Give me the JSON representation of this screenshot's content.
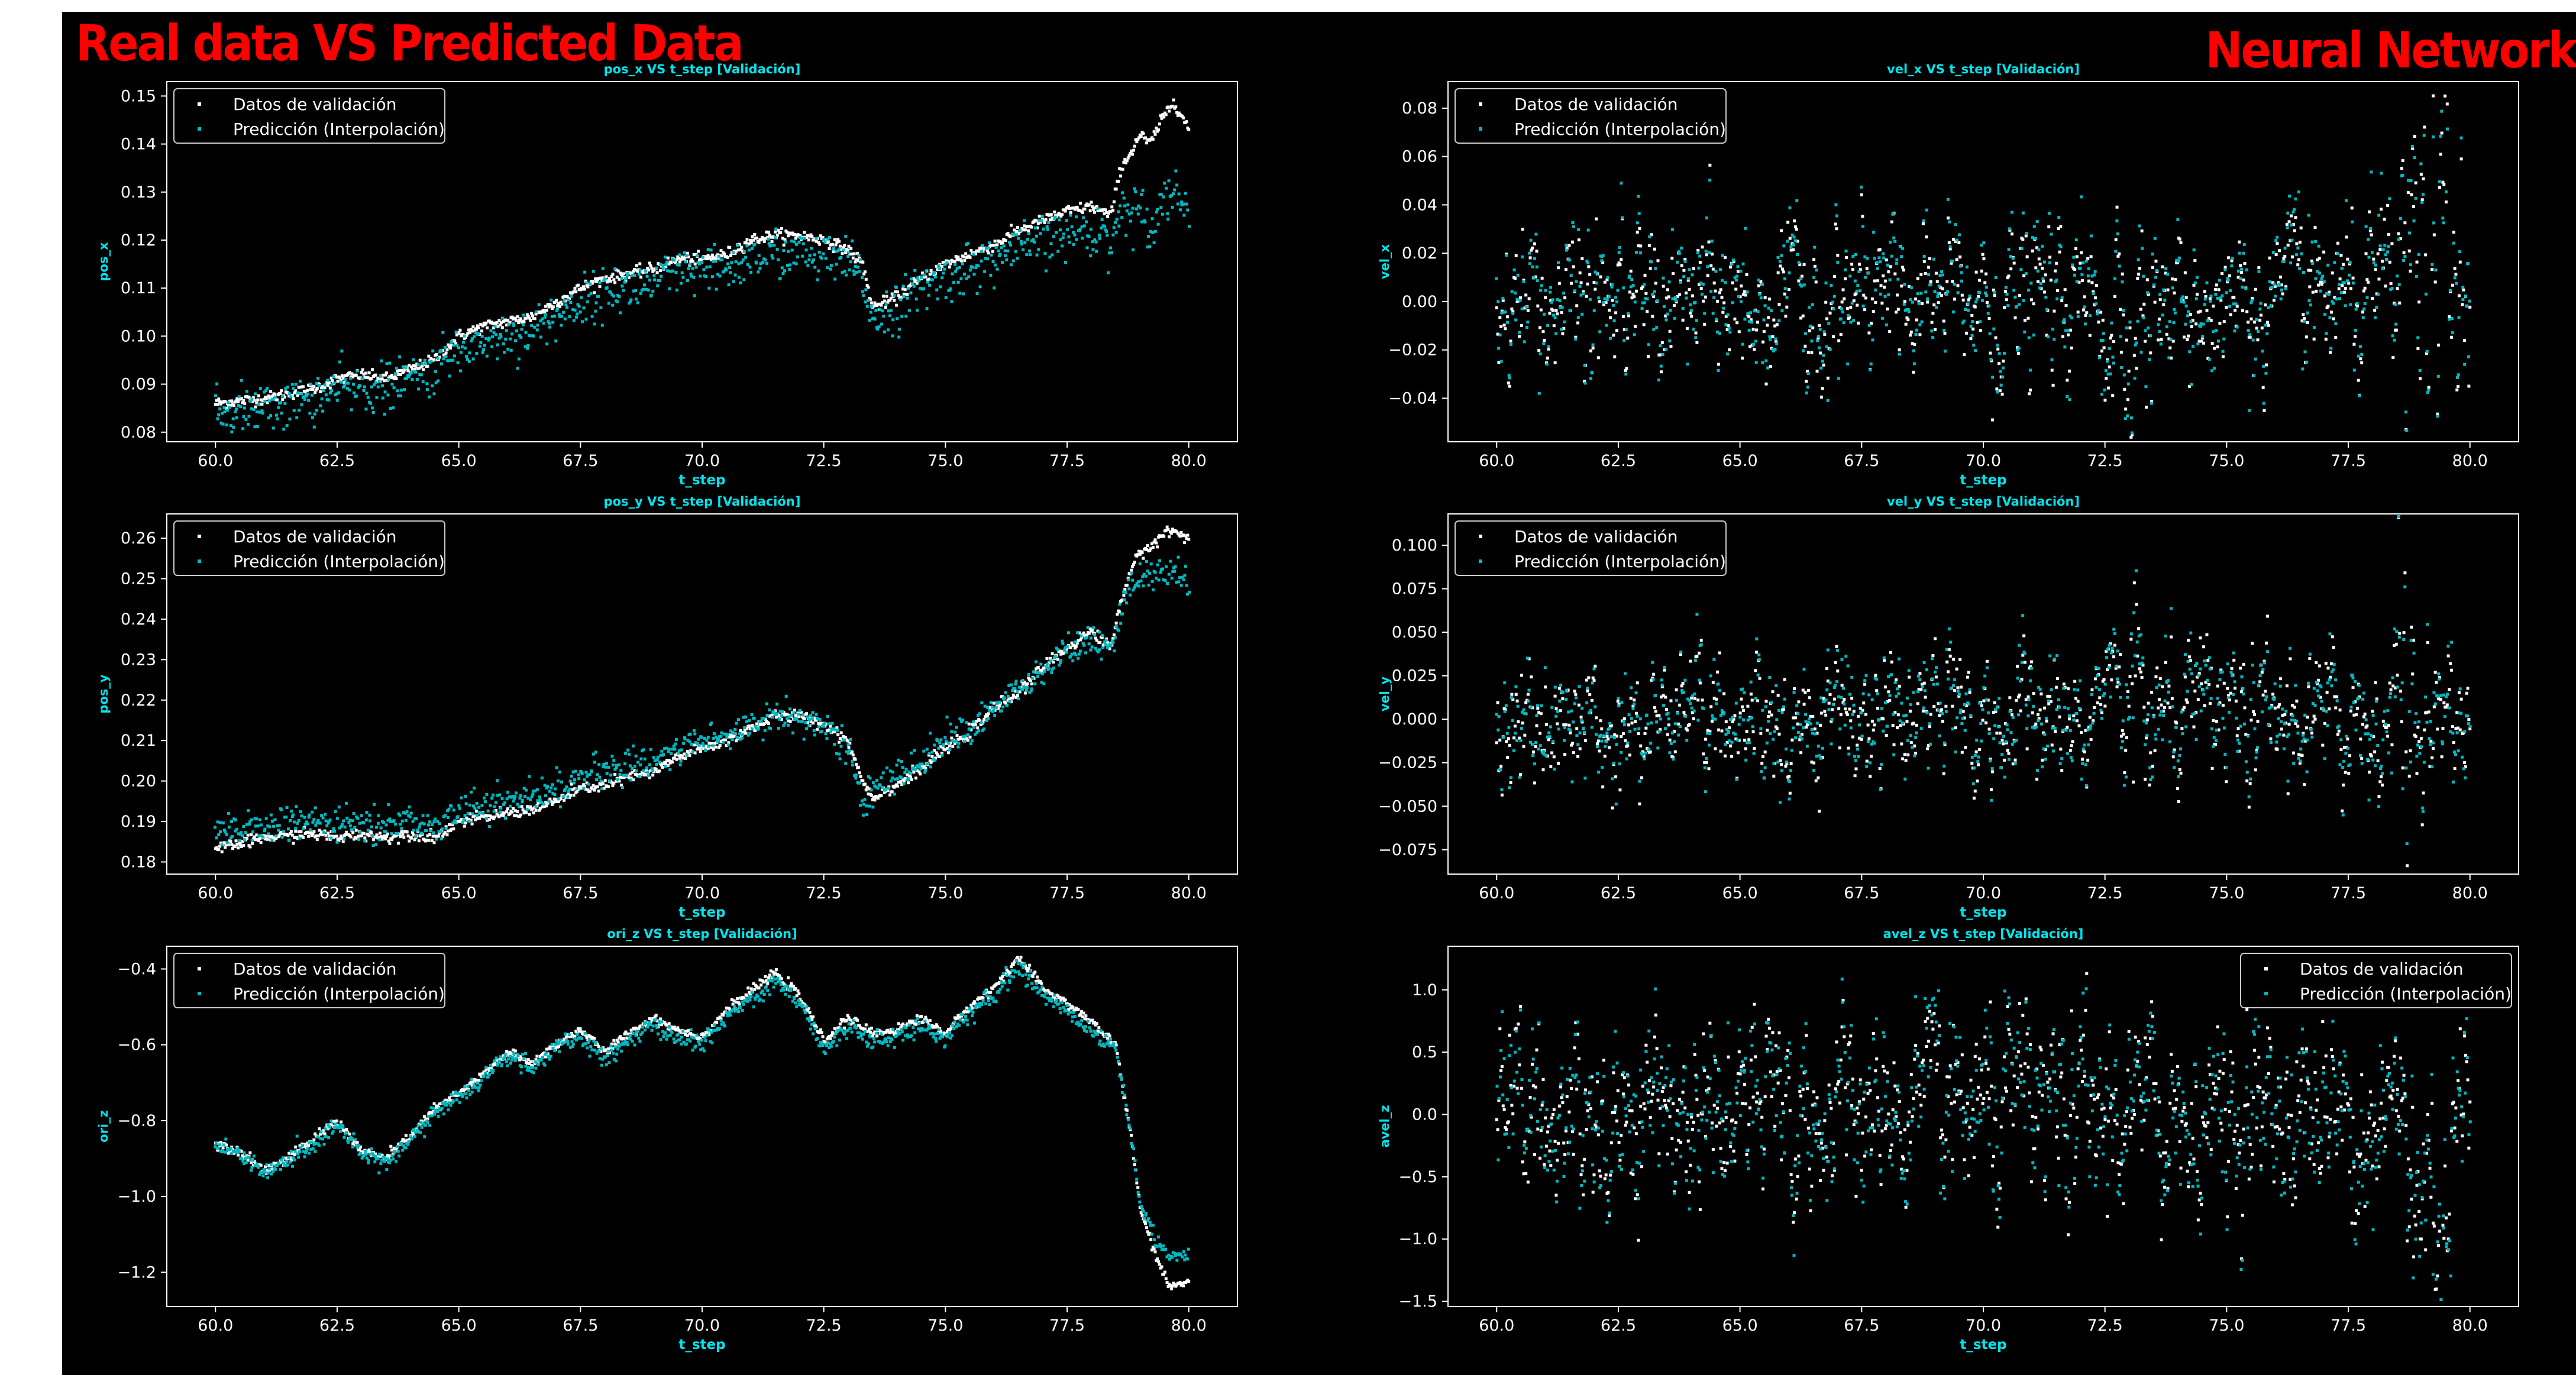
{
  "header": {
    "left_title": "Real data VS Predicted Data",
    "right_title": "Neural Network"
  },
  "colors": {
    "background": "#000000",
    "axis": "#ffffff",
    "accent_text": "#00e5ee",
    "real": "#ffffff",
    "pred": "#00b8c0",
    "header": "#ff0000"
  },
  "chart_data": [
    {
      "type": "scatter",
      "title": "pos_x VS t_step [Validación]",
      "xlabel": "t_step",
      "ylabel": "pos_x",
      "xlim": [
        59,
        81
      ],
      "ylim": [
        0.078,
        0.153
      ],
      "xticks": [
        60,
        62.5,
        65,
        67.5,
        70,
        72.5,
        75,
        77.5,
        80
      ],
      "xtick_labels": [
        "60.0",
        "62.5",
        "65.0",
        "67.5",
        "70.0",
        "72.5",
        "75.0",
        "77.5",
        "80.0"
      ],
      "yticks": [
        0.08,
        0.09,
        0.1,
        0.11,
        0.12,
        0.13,
        0.14,
        0.15
      ],
      "ytick_labels": [
        "0.08",
        "0.09",
        "0.10",
        "0.11",
        "0.12",
        "0.13",
        "0.14",
        "0.15"
      ],
      "legend": "upper-left",
      "legend_entries": [
        "Datos de validación",
        "Predicción (Interpolación)"
      ],
      "noisy": false,
      "series": [
        {
          "name": "Datos de validación",
          "x": [
            60,
            61,
            62,
            62.5,
            63,
            63.5,
            64,
            64.5,
            65,
            65.5,
            66,
            66.5,
            67,
            67.5,
            68,
            68.5,
            69,
            69.5,
            70,
            70.5,
            71,
            71.5,
            72,
            72.5,
            73,
            73.3,
            73.5,
            74,
            74.5,
            75,
            75.5,
            76,
            76.5,
            77,
            77.5,
            78,
            78.4,
            78.6,
            78.8,
            79,
            79.2,
            79.5,
            79.7,
            80
          ],
          "y": [
            0.086,
            0.087,
            0.089,
            0.091,
            0.092,
            0.091,
            0.093,
            0.095,
            0.1,
            0.102,
            0.103,
            0.104,
            0.107,
            0.11,
            0.112,
            0.113,
            0.114,
            0.116,
            0.116,
            0.117,
            0.12,
            0.121,
            0.121,
            0.12,
            0.118,
            0.115,
            0.106,
            0.108,
            0.112,
            0.115,
            0.117,
            0.119,
            0.122,
            0.124,
            0.126,
            0.127,
            0.125,
            0.135,
            0.138,
            0.142,
            0.14,
            0.146,
            0.149,
            0.143
          ],
          "jitter": 0.0006
        },
        {
          "name": "Predicción (Interpolación)",
          "x": [
            60,
            61,
            62,
            62.5,
            63,
            63.5,
            64,
            64.5,
            65,
            65.5,
            66,
            66.5,
            67,
            67.5,
            68,
            68.5,
            69,
            69.5,
            70,
            70.5,
            71,
            71.5,
            72,
            72.5,
            73,
            73.3,
            73.5,
            74,
            74.5,
            75,
            75.5,
            76,
            76.5,
            77,
            77.5,
            78,
            78.4,
            78.6,
            78.8,
            79,
            79.2,
            79.5,
            79.7,
            80
          ],
          "y": [
            0.084,
            0.085,
            0.087,
            0.089,
            0.089,
            0.089,
            0.091,
            0.093,
            0.097,
            0.099,
            0.1,
            0.101,
            0.104,
            0.107,
            0.109,
            0.11,
            0.111,
            0.113,
            0.113,
            0.114,
            0.116,
            0.117,
            0.117,
            0.116,
            0.115,
            0.112,
            0.104,
            0.106,
            0.11,
            0.112,
            0.114,
            0.116,
            0.118,
            0.12,
            0.121,
            0.122,
            0.12,
            0.126,
            0.126,
            0.127,
            0.123,
            0.129,
            0.13,
            0.127
          ],
          "jitter": 0.0025
        }
      ]
    },
    {
      "type": "scatter",
      "title": "vel_x VS t_step [Validación]",
      "xlabel": "t_step",
      "ylabel": "vel_x",
      "xlim": [
        59,
        81
      ],
      "ylim": [
        -0.058,
        0.091
      ],
      "xticks": [
        60,
        62.5,
        65,
        67.5,
        70,
        72.5,
        75,
        77.5,
        80
      ],
      "xtick_labels": [
        "60.0",
        "62.5",
        "65.0",
        "67.5",
        "70.0",
        "72.5",
        "75.0",
        "77.5",
        "80.0"
      ],
      "yticks": [
        -0.04,
        -0.02,
        0.0,
        0.02,
        0.04,
        0.06,
        0.08
      ],
      "ytick_labels": [
        "−0.04",
        "−0.02",
        "0.00",
        "0.02",
        "0.04",
        "0.06",
        "0.08"
      ],
      "legend": "upper-left",
      "legend_entries": [
        "Datos de validación",
        "Predicción (Interpolación)"
      ],
      "noisy": true,
      "amplitude": 0.018,
      "bursts": [
        {
          "x0": 78.5,
          "x1": 79.9,
          "amp": 0.05
        },
        {
          "x0": 72.5,
          "x1": 73.5,
          "amp": 0.03
        }
      ],
      "series": [
        {
          "name": "Datos de validación",
          "x": [
            60,
            80
          ],
          "y": [
            0.0,
            0.0
          ]
        },
        {
          "name": "Predicción (Interpolación)",
          "x": [
            60,
            80
          ],
          "y": [
            0.0,
            0.0
          ]
        }
      ]
    },
    {
      "type": "scatter",
      "title": "pos_y VS t_step [Validación]",
      "xlabel": "t_step",
      "ylabel": "pos_y",
      "xlim": [
        59,
        81
      ],
      "ylim": [
        0.177,
        0.266
      ],
      "xticks": [
        60,
        62.5,
        65,
        67.5,
        70,
        72.5,
        75,
        77.5,
        80
      ],
      "xtick_labels": [
        "60.0",
        "62.5",
        "65.0",
        "67.5",
        "70.0",
        "72.5",
        "75.0",
        "77.5",
        "80.0"
      ],
      "yticks": [
        0.18,
        0.19,
        0.2,
        0.21,
        0.22,
        0.23,
        0.24,
        0.25,
        0.26
      ],
      "ytick_labels": [
        "0.18",
        "0.19",
        "0.20",
        "0.21",
        "0.22",
        "0.23",
        "0.24",
        "0.25",
        "0.26"
      ],
      "legend": "upper-left",
      "legend_entries": [
        "Datos de validación",
        "Predicción (Interpolación)"
      ],
      "noisy": false,
      "series": [
        {
          "name": "Datos de validación",
          "x": [
            60,
            61,
            62,
            62.5,
            63,
            63.5,
            64,
            64.5,
            65,
            65.5,
            66,
            66.5,
            67,
            67.5,
            68,
            68.5,
            69,
            69.5,
            70,
            70.5,
            71,
            71.5,
            72,
            72.5,
            73,
            73.3,
            73.5,
            74,
            74.5,
            75,
            75.5,
            76,
            76.5,
            77,
            77.5,
            78,
            78.4,
            78.6,
            78.8,
            79,
            79.3,
            79.6,
            80
          ],
          "y": [
            0.183,
            0.186,
            0.187,
            0.186,
            0.187,
            0.186,
            0.187,
            0.186,
            0.19,
            0.191,
            0.192,
            0.193,
            0.195,
            0.198,
            0.199,
            0.201,
            0.202,
            0.206,
            0.208,
            0.21,
            0.213,
            0.216,
            0.216,
            0.214,
            0.21,
            0.2,
            0.196,
            0.199,
            0.203,
            0.208,
            0.212,
            0.218,
            0.222,
            0.228,
            0.233,
            0.237,
            0.233,
            0.244,
            0.252,
            0.256,
            0.259,
            0.262,
            0.26
          ],
          "jitter": 0.0007
        },
        {
          "name": "Predicción (Interpolación)",
          "x": [
            60,
            61,
            62,
            62.5,
            63,
            63.5,
            64,
            64.5,
            65,
            65.5,
            66,
            66.5,
            67,
            67.5,
            68,
            68.5,
            69,
            69.5,
            70,
            70.5,
            71,
            71.5,
            72,
            72.5,
            73,
            73.3,
            73.5,
            74,
            74.5,
            75,
            75.5,
            76,
            76.5,
            77,
            77.5,
            78,
            78.4,
            78.6,
            78.8,
            79,
            79.3,
            79.6,
            80
          ],
          "y": [
            0.186,
            0.189,
            0.19,
            0.189,
            0.19,
            0.189,
            0.19,
            0.189,
            0.193,
            0.194,
            0.195,
            0.196,
            0.198,
            0.201,
            0.202,
            0.204,
            0.205,
            0.208,
            0.21,
            0.211,
            0.214,
            0.216,
            0.216,
            0.213,
            0.208,
            0.195,
            0.198,
            0.201,
            0.205,
            0.21,
            0.213,
            0.218,
            0.222,
            0.227,
            0.232,
            0.235,
            0.231,
            0.242,
            0.248,
            0.25,
            0.251,
            0.252,
            0.25
          ],
          "jitter": 0.002
        }
      ]
    },
    {
      "type": "scatter",
      "title": "vel_y VS t_step [Validación]",
      "xlabel": "t_step",
      "ylabel": "vel_y",
      "xlim": [
        59,
        81
      ],
      "ylim": [
        -0.089,
        0.118
      ],
      "xticks": [
        60,
        62.5,
        65,
        67.5,
        70,
        72.5,
        75,
        77.5,
        80
      ],
      "xtick_labels": [
        "60.0",
        "62.5",
        "65.0",
        "67.5",
        "70.0",
        "72.5",
        "75.0",
        "77.5",
        "80.0"
      ],
      "yticks": [
        -0.075,
        -0.05,
        -0.025,
        0.0,
        0.025,
        0.05,
        0.075,
        0.1
      ],
      "ytick_labels": [
        "−0.075",
        "−0.050",
        "−0.025",
        "0.000",
        "0.025",
        "0.050",
        "0.075",
        "0.100"
      ],
      "legend": "upper-left",
      "legend_entries": [
        "Datos de validación",
        "Predicción (Interpolación)"
      ],
      "noisy": true,
      "amplitude": 0.022,
      "bursts": [
        {
          "x0": 78.4,
          "x1": 78.9,
          "amp": 0.07
        },
        {
          "x0": 73.0,
          "x1": 73.5,
          "amp": 0.05
        }
      ],
      "series": [
        {
          "name": "Datos de validación",
          "x": [
            60,
            80
          ],
          "y": [
            0.0,
            0.0
          ]
        },
        {
          "name": "Predicción (Interpolación)",
          "x": [
            60,
            80
          ],
          "y": [
            0.0,
            0.0
          ]
        }
      ]
    },
    {
      "type": "scatter",
      "title": "ori_z VS t_step [Validación]",
      "xlabel": "t_step",
      "ylabel": "ori_z",
      "xlim": [
        59,
        81
      ],
      "ylim": [
        -1.29,
        -0.34
      ],
      "xticks": [
        60,
        62.5,
        65,
        67.5,
        70,
        72.5,
        75,
        77.5,
        80
      ],
      "xtick_labels": [
        "60.0",
        "62.5",
        "65.0",
        "67.5",
        "70.0",
        "72.5",
        "75.0",
        "77.5",
        "80.0"
      ],
      "yticks": [
        -1.2,
        -1.0,
        -0.8,
        -0.6,
        -0.4
      ],
      "ytick_labels": [
        "−1.2",
        "−1.0",
        "−0.8",
        "−0.6",
        "−0.4"
      ],
      "legend": "upper-left",
      "legend_entries": [
        "Datos de validación",
        "Predicción (Interpolación)"
      ],
      "noisy": false,
      "series": [
        {
          "name": "Datos de validación",
          "x": [
            60,
            60.5,
            61,
            61.5,
            62,
            62.5,
            63,
            63.5,
            64,
            64.5,
            65,
            65.5,
            66,
            66.5,
            67,
            67.5,
            68,
            68.5,
            69,
            69.5,
            70,
            70.5,
            71,
            71.5,
            72,
            72.5,
            73,
            73.5,
            74,
            74.5,
            75,
            75.5,
            76,
            76.5,
            77,
            77.5,
            78,
            78.5,
            78.8,
            79,
            79.3,
            79.6,
            80
          ],
          "y": [
            -0.86,
            -0.88,
            -0.93,
            -0.9,
            -0.85,
            -0.8,
            -0.88,
            -0.9,
            -0.84,
            -0.77,
            -0.73,
            -0.68,
            -0.62,
            -0.65,
            -0.6,
            -0.56,
            -0.62,
            -0.57,
            -0.53,
            -0.56,
            -0.58,
            -0.51,
            -0.46,
            -0.41,
            -0.47,
            -0.59,
            -0.53,
            -0.57,
            -0.56,
            -0.53,
            -0.57,
            -0.5,
            -0.45,
            -0.37,
            -0.45,
            -0.49,
            -0.54,
            -0.6,
            -0.83,
            -1.03,
            -1.15,
            -1.24,
            -1.22
          ],
          "jitter": 0.006
        },
        {
          "name": "Predicción (Interpolación)",
          "x": [
            60,
            60.5,
            61,
            61.5,
            62,
            62.5,
            63,
            63.5,
            64,
            64.5,
            65,
            65.5,
            66,
            66.5,
            67,
            67.5,
            68,
            68.5,
            69,
            69.5,
            70,
            70.5,
            71,
            71.5,
            72,
            72.5,
            73,
            73.5,
            74,
            74.5,
            75,
            75.5,
            76,
            76.5,
            77,
            77.5,
            78,
            78.5,
            78.8,
            79,
            79.3,
            79.6,
            80
          ],
          "y": [
            -0.87,
            -0.89,
            -0.94,
            -0.91,
            -0.86,
            -0.81,
            -0.89,
            -0.91,
            -0.85,
            -0.78,
            -0.74,
            -0.69,
            -0.63,
            -0.66,
            -0.61,
            -0.58,
            -0.64,
            -0.59,
            -0.55,
            -0.58,
            -0.6,
            -0.53,
            -0.48,
            -0.43,
            -0.49,
            -0.61,
            -0.55,
            -0.59,
            -0.58,
            -0.55,
            -0.58,
            -0.52,
            -0.47,
            -0.39,
            -0.47,
            -0.51,
            -0.56,
            -0.61,
            -0.83,
            -1.01,
            -1.12,
            -1.16,
            -1.15
          ],
          "jitter": 0.012
        }
      ]
    },
    {
      "type": "scatter",
      "title": "avel_z VS t_step [Validación]",
      "xlabel": "t_step",
      "ylabel": "avel_z",
      "xlim": [
        59,
        81
      ],
      "ylim": [
        -1.54,
        1.35
      ],
      "xticks": [
        60,
        62.5,
        65,
        67.5,
        70,
        72.5,
        75,
        77.5,
        80
      ],
      "xtick_labels": [
        "60.0",
        "62.5",
        "65.0",
        "67.5",
        "70.0",
        "72.5",
        "75.0",
        "77.5",
        "80.0"
      ],
      "yticks": [
        -1.5,
        -1.0,
        -0.5,
        0.0,
        0.5,
        1.0
      ],
      "ytick_labels": [
        "−1.5",
        "−1.0",
        "−0.5",
        "0.0",
        "0.5",
        "1.0"
      ],
      "legend": "upper-right",
      "legend_entries": [
        "Datos de validación",
        "Predicción (Interpolación)"
      ],
      "noisy": true,
      "amplitude": 0.42,
      "bursts": [
        {
          "x0": 78.7,
          "x1": 79.6,
          "amp": 0.8,
          "offset": -0.6
        }
      ],
      "series": [
        {
          "name": "Datos de validación",
          "x": [
            60,
            80
          ],
          "y": [
            0.0,
            0.0
          ]
        },
        {
          "name": "Predicción (Interpolación)",
          "x": [
            60,
            80
          ],
          "y": [
            0.0,
            0.0
          ]
        }
      ]
    }
  ]
}
